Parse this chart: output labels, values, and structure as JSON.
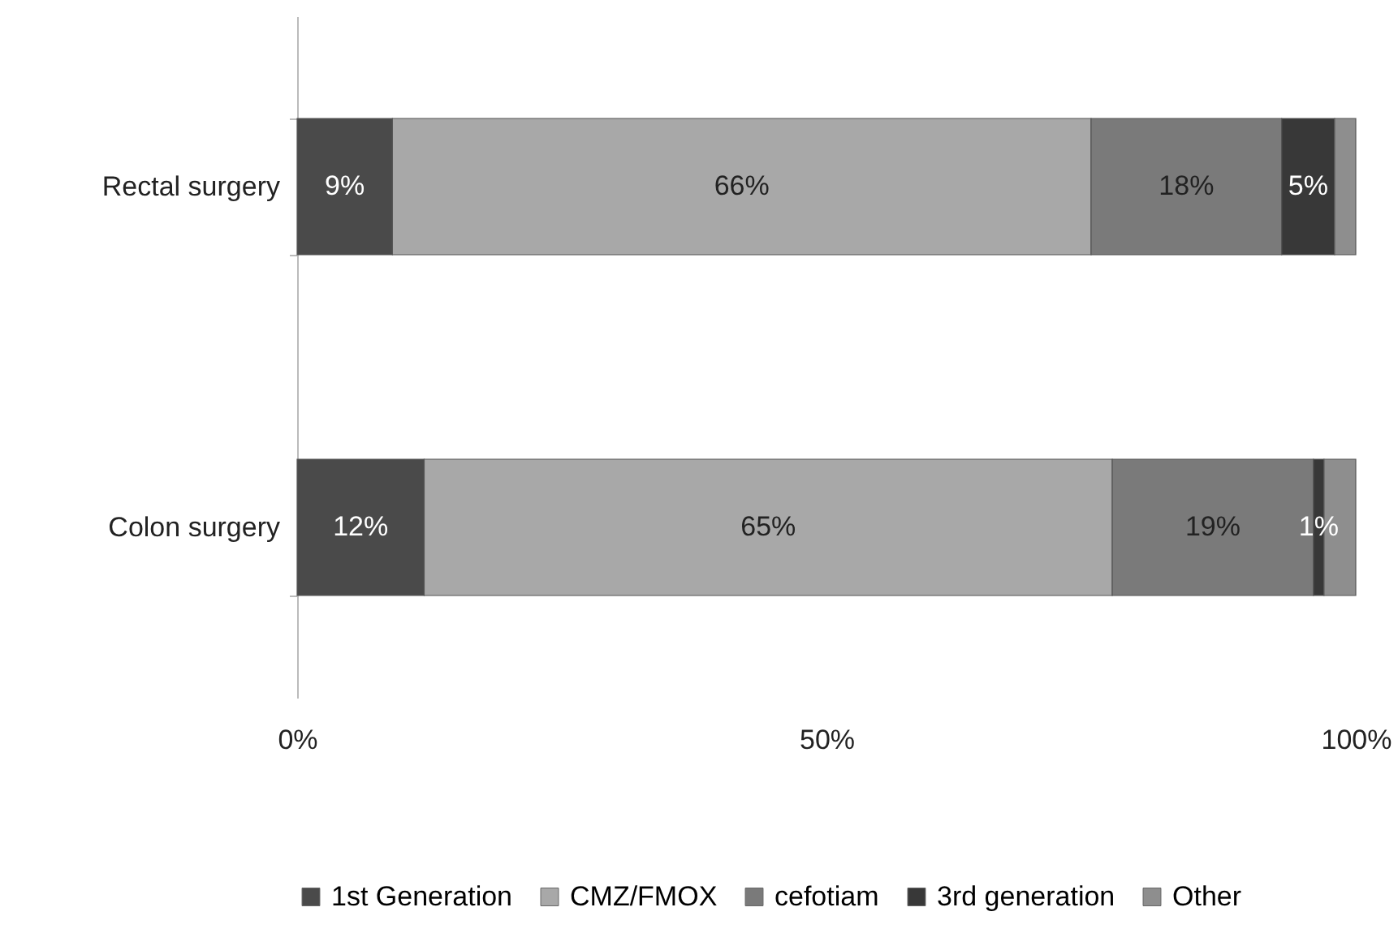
{
  "chart_data": {
    "type": "bar",
    "orientation": "horizontal",
    "stacked": true,
    "categories": [
      "Rectal surgery",
      "Colon surgery"
    ],
    "series": [
      {
        "name": "1st Generation",
        "color": "#4a4a4a",
        "values": [
          9,
          12
        ],
        "value_labels": [
          "9%",
          "12%"
        ]
      },
      {
        "name": "CMZ/FMOX",
        "color": "#a8a8a8",
        "values": [
          66,
          65
        ],
        "value_labels": [
          "66%",
          "65%"
        ]
      },
      {
        "name": "cefotiam",
        "color": "#7a7a7a",
        "values": [
          18,
          19
        ],
        "value_labels": [
          "18%",
          "19%"
        ]
      },
      {
        "name": "3rd generation",
        "color": "#383838",
        "values": [
          5,
          1
        ],
        "value_labels": [
          "5%",
          "1%"
        ]
      },
      {
        "name": "Other",
        "color": "#8e8e8e",
        "values": [
          2,
          3
        ],
        "value_labels": [
          null,
          null
        ]
      }
    ],
    "xlim": [
      0,
      100
    ],
    "xticks": [
      {
        "value": 0,
        "label": "0%"
      },
      {
        "value": 50,
        "label": "50%"
      },
      {
        "value": 100,
        "label": "100%"
      }
    ],
    "grid": false,
    "legend": "bottom"
  }
}
